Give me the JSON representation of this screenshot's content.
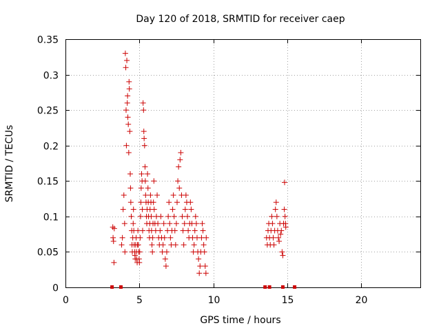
{
  "chart_data": {
    "type": "scatter",
    "title": "Day 120 of 2018, SRMTID for receiver caep",
    "xlabel": "GPS time / hours",
    "ylabel": "SRMTID / TECUs",
    "xlim": [
      0,
      24
    ],
    "ylim": [
      0,
      0.35
    ],
    "xticks": [
      0,
      5,
      10,
      15,
      20
    ],
    "yticks": [
      0,
      0.05,
      0.1,
      0.15,
      0.2,
      0.25,
      0.3,
      0.35
    ],
    "xtick_labels": [
      "0",
      "5",
      "10",
      "15",
      "20"
    ],
    "ytick_labels": [
      "0",
      "0.05",
      "0.1",
      "0.15",
      "0.2",
      "0.25",
      "0.3",
      "0.35"
    ],
    "grid": true,
    "marker": "+",
    "color": "#cc0000",
    "series": [
      {
        "name": "SRMTID",
        "points": [
          [
            3.2,
            0.085
          ],
          [
            3.22,
            0.07
          ],
          [
            3.25,
            0.065
          ],
          [
            3.28,
            0.035
          ],
          [
            3.3,
            0.083
          ],
          [
            3.8,
            0.06
          ],
          [
            3.85,
            0.07
          ],
          [
            3.9,
            0.11
          ],
          [
            3.95,
            0.13
          ],
          [
            4.0,
            0.09
          ],
          [
            4.02,
            0.05
          ],
          [
            4.05,
            0.33
          ],
          [
            4.08,
            0.31
          ],
          [
            4.1,
            0.25
          ],
          [
            4.12,
            0.2
          ],
          [
            4.15,
            0.32
          ],
          [
            4.18,
            0.26
          ],
          [
            4.2,
            0.27
          ],
          [
            4.22,
            0.24
          ],
          [
            4.25,
            0.23
          ],
          [
            4.28,
            0.19
          ],
          [
            4.3,
            0.29
          ],
          [
            4.32,
            0.28
          ],
          [
            4.35,
            0.22
          ],
          [
            4.38,
            0.16
          ],
          [
            4.4,
            0.14
          ],
          [
            4.42,
            0.12
          ],
          [
            4.45,
            0.1
          ],
          [
            4.48,
            0.08
          ],
          [
            4.5,
            0.06
          ],
          [
            4.52,
            0.05
          ],
          [
            4.55,
            0.07
          ],
          [
            4.58,
            0.09
          ],
          [
            4.6,
            0.11
          ],
          [
            4.62,
            0.08
          ],
          [
            4.65,
            0.06
          ],
          [
            4.68,
            0.05
          ],
          [
            4.7,
            0.045
          ],
          [
            4.72,
            0.04
          ],
          [
            4.75,
            0.06
          ],
          [
            4.78,
            0.07
          ],
          [
            4.8,
            0.05
          ],
          [
            4.82,
            0.04
          ],
          [
            4.85,
            0.035
          ],
          [
            4.88,
            0.06
          ],
          [
            4.9,
            0.08
          ],
          [
            4.92,
            0.06
          ],
          [
            4.95,
            0.05
          ],
          [
            4.98,
            0.04
          ],
          [
            5.0,
            0.035
          ],
          [
            5.02,
            0.05
          ],
          [
            5.05,
            0.07
          ],
          [
            5.08,
            0.1
          ],
          [
            5.1,
            0.12
          ],
          [
            5.12,
            0.14
          ],
          [
            5.15,
            0.16
          ],
          [
            5.18,
            0.15
          ],
          [
            5.2,
            0.11
          ],
          [
            5.22,
            0.08
          ],
          [
            5.25,
            0.26
          ],
          [
            5.28,
            0.25
          ],
          [
            5.3,
            0.22
          ],
          [
            5.32,
            0.21
          ],
          [
            5.35,
            0.2
          ],
          [
            5.38,
            0.17
          ],
          [
            5.4,
            0.15
          ],
          [
            5.42,
            0.13
          ],
          [
            5.45,
            0.12
          ],
          [
            5.48,
            0.1
          ],
          [
            5.5,
            0.09
          ],
          [
            5.52,
            0.11
          ],
          [
            5.55,
            0.16
          ],
          [
            5.58,
            0.14
          ],
          [
            5.6,
            0.12
          ],
          [
            5.62,
            0.1
          ],
          [
            5.65,
            0.08
          ],
          [
            5.68,
            0.07
          ],
          [
            5.7,
            0.09
          ],
          [
            5.72,
            0.11
          ],
          [
            5.75,
            0.13
          ],
          [
            5.78,
            0.12
          ],
          [
            5.8,
            0.1
          ],
          [
            5.82,
            0.08
          ],
          [
            5.85,
            0.06
          ],
          [
            5.88,
            0.05
          ],
          [
            5.9,
            0.07
          ],
          [
            5.92,
            0.09
          ],
          [
            5.95,
            0.12
          ],
          [
            5.98,
            0.15
          ],
          [
            6.0,
            0.11
          ],
          [
            6.05,
            0.09
          ],
          [
            6.1,
            0.08
          ],
          [
            6.15,
            0.1
          ],
          [
            6.2,
            0.13
          ],
          [
            6.25,
            0.09
          ],
          [
            6.3,
            0.07
          ],
          [
            6.35,
            0.06
          ],
          [
            6.4,
            0.08
          ],
          [
            6.45,
            0.1
          ],
          [
            6.5,
            0.07
          ],
          [
            6.55,
            0.05
          ],
          [
            6.6,
            0.06
          ],
          [
            6.65,
            0.09
          ],
          [
            6.7,
            0.07
          ],
          [
            6.75,
            0.04
          ],
          [
            6.8,
            0.03
          ],
          [
            6.85,
            0.05
          ],
          [
            6.9,
            0.08
          ],
          [
            6.95,
            0.1
          ],
          [
            7.0,
            0.12
          ],
          [
            7.05,
            0.09
          ],
          [
            7.1,
            0.07
          ],
          [
            7.15,
            0.06
          ],
          [
            7.2,
            0.08
          ],
          [
            7.25,
            0.11
          ],
          [
            7.3,
            0.13
          ],
          [
            7.35,
            0.1
          ],
          [
            7.4,
            0.08
          ],
          [
            7.45,
            0.06
          ],
          [
            7.5,
            0.09
          ],
          [
            7.55,
            0.12
          ],
          [
            7.6,
            0.15
          ],
          [
            7.65,
            0.17
          ],
          [
            7.7,
            0.14
          ],
          [
            7.75,
            0.18
          ],
          [
            7.8,
            0.19
          ],
          [
            7.85,
            0.13
          ],
          [
            7.9,
            0.1
          ],
          [
            7.95,
            0.08
          ],
          [
            8.0,
            0.06
          ],
          [
            8.05,
            0.09
          ],
          [
            8.1,
            0.11
          ],
          [
            8.15,
            0.13
          ],
          [
            8.2,
            0.12
          ],
          [
            8.25,
            0.1
          ],
          [
            8.3,
            0.08
          ],
          [
            8.35,
            0.07
          ],
          [
            8.4,
            0.09
          ],
          [
            8.45,
            0.12
          ],
          [
            8.5,
            0.11
          ],
          [
            8.55,
            0.09
          ],
          [
            8.6,
            0.07
          ],
          [
            8.65,
            0.05
          ],
          [
            8.7,
            0.06
          ],
          [
            8.75,
            0.08
          ],
          [
            8.8,
            0.1
          ],
          [
            8.85,
            0.09
          ],
          [
            8.9,
            0.07
          ],
          [
            8.95,
            0.05
          ],
          [
            9.0,
            0.04
          ],
          [
            9.05,
            0.02
          ],
          [
            9.1,
            0.03
          ],
          [
            9.15,
            0.05
          ],
          [
            9.2,
            0.07
          ],
          [
            9.25,
            0.09
          ],
          [
            9.3,
            0.08
          ],
          [
            9.35,
            0.06
          ],
          [
            9.4,
            0.05
          ],
          [
            9.45,
            0.03
          ],
          [
            9.5,
            0.02
          ],
          [
            9.52,
            0.07
          ],
          [
            13.6,
            0.07
          ],
          [
            13.65,
            0.06
          ],
          [
            13.7,
            0.08
          ],
          [
            13.75,
            0.09
          ],
          [
            13.8,
            0.07
          ],
          [
            13.85,
            0.06
          ],
          [
            13.9,
            0.08
          ],
          [
            13.95,
            0.1
          ],
          [
            14.0,
            0.09
          ],
          [
            14.05,
            0.07
          ],
          [
            14.1,
            0.06
          ],
          [
            14.15,
            0.08
          ],
          [
            14.2,
            0.11
          ],
          [
            14.25,
            0.12
          ],
          [
            14.3,
            0.1
          ],
          [
            14.35,
            0.08
          ],
          [
            14.4,
            0.07
          ],
          [
            14.45,
            0.065
          ],
          [
            14.5,
            0.09
          ],
          [
            14.55,
            0.075
          ],
          [
            14.6,
            0.08
          ],
          [
            14.65,
            0.05
          ],
          [
            14.7,
            0.045
          ],
          [
            14.75,
            0.09
          ],
          [
            14.8,
            0.11
          ],
          [
            14.82,
            0.148
          ],
          [
            14.85,
            0.1
          ],
          [
            14.88,
            0.09
          ],
          [
            14.9,
            0.085
          ]
        ]
      }
    ],
    "gap_markers_x": [
      3.15,
      3.75,
      13.5,
      13.8,
      14.7,
      15.5
    ]
  }
}
